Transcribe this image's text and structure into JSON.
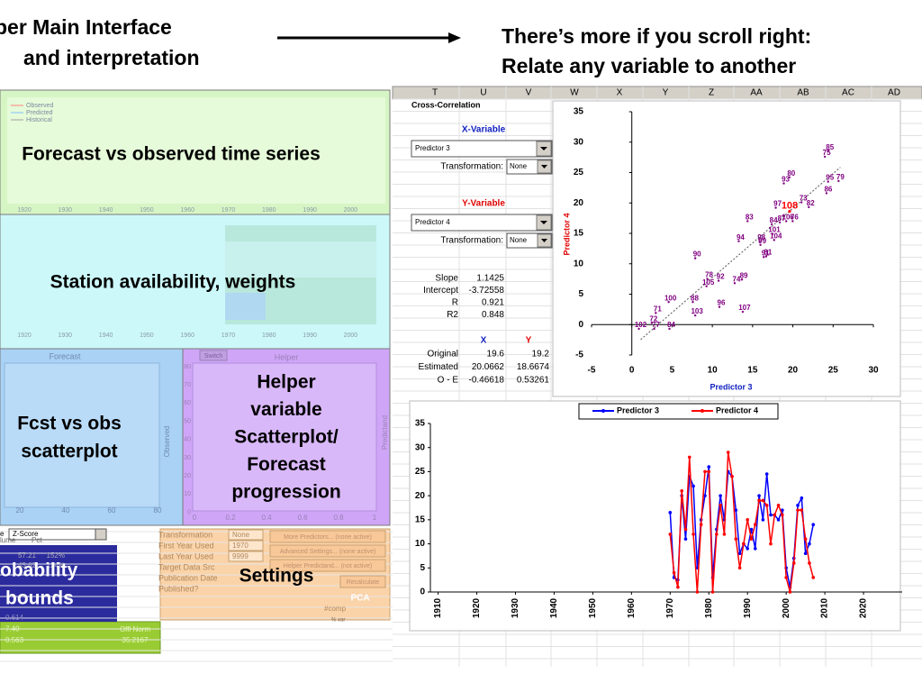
{
  "left_title": [
    "per Main Interface",
    "and interpretation"
  ],
  "right_title": [
    "There’s more if you scroll right:",
    "Relate any variable to another"
  ],
  "time_series_panel": {
    "label": "Forecast vs observed time series",
    "legend": [
      "Observed",
      "Predicted",
      "Historical"
    ],
    "years": [
      1920,
      1930,
      1940,
      1950,
      1960,
      1970,
      1980,
      1990,
      2000
    ]
  },
  "station_panel": {
    "label": "Station availability, weights",
    "years": [
      1920,
      1930,
      1940,
      1950,
      1960,
      1970,
      1980,
      1990,
      2000
    ]
  },
  "scatter_panel": {
    "header": "Forecast",
    "label": [
      "Fcst vs obs",
      "scatterplot"
    ],
    "axis_title": "Observed",
    "xticks": [
      20,
      40,
      60,
      80
    ]
  },
  "helper_panel": {
    "header": "Helper",
    "button": "Switch",
    "label": [
      "Helper",
      "variable",
      "Scatterplot/",
      "Forecast",
      "progression"
    ],
    "axis_title": "Predictand",
    "xticks": [
      0,
      0.2,
      0.4,
      0.6,
      0.8,
      1
    ],
    "yticks": [
      80,
      70,
      60,
      50,
      40,
      30,
      20,
      10,
      0
    ]
  },
  "probability_panel": {
    "label": [
      "obability",
      "bounds"
    ],
    "dropdown_prefix": "e",
    "dropdown": "Z-Score",
    "headers": [
      "lume",
      "Pct"
    ],
    "rows": [
      [
        "57.21",
        "152%"
      ],
      [
        "43.62",
        "124%"
      ]
    ],
    "cells": [
      "0.614",
      "7.40",
      "0.563"
    ],
    "norm_label": "Offl Norm",
    "norm_value": "35.2167"
  },
  "settings_panel": {
    "label": "Settings",
    "fields": [
      "Transformation",
      "First Year Used",
      "Last Year Used",
      "Target Data Src",
      "Publication Date",
      "Published?"
    ],
    "values": [
      "None",
      "1970",
      "9999"
    ],
    "buttons": [
      "More Predictors... (none active)",
      "Advanced Settings... (none active)",
      "Helper Predictand... (not active)",
      "Recalculate"
    ],
    "pca": "PCA",
    "comp": "#comp",
    "var": "% var"
  },
  "spreadsheet": {
    "columns": [
      "T",
      "U",
      "V",
      "W",
      "X",
      "Y",
      "Z",
      "AA",
      "AB",
      "AC",
      "AD"
    ],
    "title": "Cross-Correlation",
    "x_variable": "X-Variable",
    "x_predictor": "Predictor 3",
    "y_variable": "Y-Variable",
    "y_predictor": "Predictor 4",
    "transformation_label": "Transformation:",
    "transformation": "None",
    "stats": [
      [
        "Slope",
        1.1425
      ],
      [
        "Intercept",
        -3.72558
      ],
      [
        "R",
        0.921
      ],
      [
        "R2",
        0.848
      ]
    ],
    "xy_headers": [
      "X",
      "Y"
    ],
    "comparison": [
      [
        "Original",
        19.6,
        19.2
      ],
      [
        "Estimated",
        20.0662,
        18.6674
      ],
      [
        "O - E",
        -0.46618,
        0.53261
      ]
    ]
  },
  "chart_data": [
    {
      "type": "scatter",
      "xlabel": "Predictor 3",
      "ylabel": "Predictor 4",
      "color": "#800080",
      "current_label": "108",
      "current_color": "#ff0000",
      "labels": [
        "85",
        "75",
        "80",
        "93",
        "95",
        "79",
        "86",
        "97",
        "73",
        "82",
        "83",
        "84",
        "87",
        "106",
        "76",
        "101",
        "94",
        "98",
        "99",
        "104",
        "90",
        "91",
        "81",
        "78",
        "92",
        "105",
        "89",
        "74",
        "100",
        "88",
        "96",
        "107",
        "71",
        "103",
        "72",
        "102",
        "77",
        "84"
      ],
      "x": [
        24.6,
        24.2,
        19.8,
        19.1,
        24.6,
        25.9,
        24.4,
        18.1,
        21.3,
        22.2,
        14.6,
        17.6,
        18.6,
        19.4,
        20.2,
        17.7,
        13.5,
        16.1,
        16.2,
        17.9,
        8.1,
        16.6,
        16.9,
        9.6,
        11.0,
        9.5,
        13.9,
        13.0,
        4.8,
        7.8,
        11.1,
        14.0,
        3.2,
        8.1,
        2.7,
        1.1,
        3.0,
        4.9
      ],
      "y": [
        29.1,
        28.2,
        24.8,
        23.8,
        24.1,
        24.2,
        22.2,
        19.8,
        20.7,
        19.9,
        17.6,
        17.1,
        17.4,
        17.6,
        17.6,
        15.5,
        14.3,
        14.3,
        13.7,
        14.5,
        11.5,
        11.7,
        11.8,
        8.1,
        7.8,
        6.9,
        8.0,
        7.4,
        4.3,
        4.3,
        3.5,
        2.7,
        2.5,
        2.1,
        0.9,
        -0.1,
        -0.1,
        -0.1
      ],
      "xlim": [
        -5,
        30
      ],
      "ylim": [
        -5,
        35
      ],
      "xticks": [
        -5,
        0,
        5,
        10,
        15,
        20,
        25,
        30
      ],
      "yticks": [
        -5,
        0,
        5,
        10,
        15,
        20,
        25,
        30,
        35
      ]
    },
    {
      "type": "line",
      "x": [
        1970,
        1971,
        1972,
        1973,
        1974,
        1975,
        1976,
        1977,
        1978,
        1979,
        1980,
        1981,
        1982,
        1983,
        1984,
        1985,
        1986,
        1987,
        1988,
        1989,
        1990,
        1991,
        1992,
        1993,
        1994,
        1995,
        1996,
        1997,
        1998,
        1999,
        2000,
        2001,
        2002,
        2003,
        2004,
        2005,
        2006,
        2007
      ],
      "series": [
        {
          "name": "Predictor 3",
          "color": "#0000ff",
          "values": [
            16.5,
            3,
            2.5,
            20,
            11,
            24,
            22,
            5,
            15,
            20,
            26,
            3,
            13,
            20,
            15,
            25,
            24,
            17,
            8,
            10,
            9,
            13,
            9,
            20,
            15,
            24.5,
            16,
            16,
            15,
            17,
            5,
            1,
            7,
            18,
            19.5,
            8,
            10,
            14
          ]
        },
        {
          "name": "Predictor 4",
          "color": "#ff0000",
          "values": [
            12,
            4,
            1,
            21,
            13,
            28,
            12,
            0,
            14,
            25,
            25,
            0,
            12,
            18,
            12,
            29,
            24,
            11,
            5,
            10,
            15,
            11,
            14,
            19,
            19,
            18,
            10,
            16,
            18,
            16,
            3,
            0,
            6,
            17,
            17,
            11,
            6,
            3
          ]
        }
      ],
      "xlim": [
        1908,
        2030
      ],
      "ylim": [
        0,
        35
      ],
      "xticks": [
        1910,
        1920,
        1930,
        1940,
        1950,
        1960,
        1970,
        1980,
        1990,
        2000,
        2010,
        2020
      ],
      "yticks": [
        0,
        5,
        10,
        15,
        20,
        25,
        30,
        35
      ]
    }
  ]
}
